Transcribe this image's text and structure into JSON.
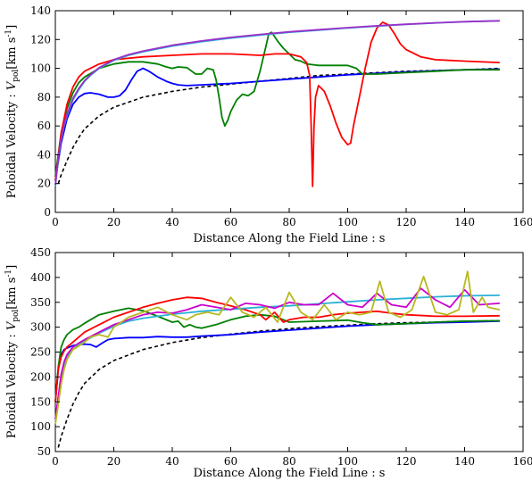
{
  "chart_data": [
    {
      "type": "line",
      "xlabel": "Distance Along the Field Line : s",
      "ylabel": "Poloidal Velocity : V_pol [km s^-1]",
      "xlim": [
        0,
        160
      ],
      "ylim": [
        0,
        140
      ],
      "xticks": [
        "0",
        "20",
        "40",
        "60",
        "80",
        "100",
        "120",
        "140",
        "160"
      ],
      "yticks": [
        "0",
        "20",
        "40",
        "60",
        "80",
        "100",
        "120",
        "140"
      ],
      "grid": false,
      "series": [
        {
          "color": "#000000",
          "dash": "4,3",
          "x": [
            1,
            2,
            4,
            6,
            8,
            10,
            15,
            20,
            30,
            40,
            50,
            60,
            70,
            80,
            90,
            100,
            110,
            120,
            130,
            140,
            152
          ],
          "y": [
            20,
            26,
            36,
            45,
            52,
            58,
            67,
            73,
            80,
            84,
            87,
            89,
            91,
            93,
            95,
            96,
            97,
            98,
            98.5,
            99,
            100
          ]
        },
        {
          "color": "#0000ff",
          "x": [
            0,
            2,
            4,
            6,
            8,
            10,
            12,
            15,
            18,
            20,
            22,
            24,
            26,
            28,
            30,
            32,
            35,
            38,
            40,
            42,
            45,
            50,
            60,
            70,
            80,
            90,
            100,
            110,
            120,
            130,
            140,
            152
          ],
          "y": [
            22,
            48,
            65,
            75,
            80,
            82.5,
            83,
            82,
            80,
            80,
            81,
            85,
            92,
            98,
            100,
            98,
            94,
            91,
            89.5,
            88.5,
            88,
            88.5,
            89.5,
            91,
            92.5,
            94,
            95.5,
            96.5,
            97.5,
            98.3,
            99,
            99.5
          ]
        },
        {
          "color": "#008000",
          "x": [
            0,
            2,
            4,
            6,
            8,
            10,
            15,
            20,
            25,
            30,
            35,
            38,
            40,
            42,
            45,
            48,
            50,
            52,
            54,
            55,
            56,
            57,
            58,
            59,
            60,
            62,
            64,
            66,
            68,
            70,
            72,
            73,
            74,
            76,
            78,
            80,
            82,
            84,
            86,
            88,
            90,
            95,
            100,
            103,
            105,
            110,
            120,
            130,
            140,
            152
          ],
          "y": [
            25,
            55,
            72,
            83,
            90,
            94,
            100,
            103,
            104.5,
            104.5,
            103,
            101,
            100,
            101,
            100.5,
            96,
            96,
            100,
            99,
            92,
            80,
            66,
            60,
            64,
            70,
            78,
            82,
            81,
            84,
            98,
            115,
            124,
            125,
            119,
            114,
            110,
            106,
            105,
            103,
            102.5,
            102,
            102,
            102,
            100,
            96,
            96,
            97,
            98,
            99,
            99
          ]
        },
        {
          "color": "#ff0000",
          "x": [
            0,
            2,
            4,
            6,
            8,
            10,
            15,
            20,
            30,
            40,
            50,
            60,
            70,
            75,
            80,
            84,
            86,
            87,
            87.5,
            88,
            88.5,
            89,
            90,
            92,
            94,
            96,
            98,
            100,
            101,
            102,
            104,
            106,
            108,
            110,
            112,
            114,
            116,
            118,
            120,
            125,
            130,
            140,
            152
          ],
          "y": [
            22,
            55,
            75,
            87,
            94,
            98,
            103,
            106,
            108,
            109,
            110,
            110,
            109,
            110,
            110,
            108,
            104,
            95,
            60,
            18,
            60,
            80,
            88,
            84,
            74,
            62,
            52,
            47,
            48,
            60,
            80,
            100,
            118,
            128,
            132,
            130,
            124,
            117,
            113,
            108,
            106,
            105,
            104
          ]
        },
        {
          "color": "#2ab0d8",
          "x": [
            0,
            1,
            2,
            3,
            4,
            6,
            8,
            10,
            12,
            15,
            20,
            25,
            30,
            40,
            50,
            60,
            70,
            80,
            90,
            100,
            110,
            120,
            130,
            140,
            152
          ],
          "y": [
            18,
            37,
            50,
            60,
            67,
            78,
            85,
            91,
            95,
            100,
            105.5,
            109,
            111.5,
            115.5,
            118.5,
            121,
            123,
            125,
            126.5,
            128,
            129.3,
            130.5,
            131.5,
            132.3,
            133
          ]
        },
        {
          "color": "#9b30c8",
          "x": [
            0,
            1,
            2,
            3,
            4,
            6,
            8,
            10,
            12,
            15,
            20,
            25,
            30,
            40,
            50,
            60,
            70,
            80,
            90,
            100,
            110,
            120,
            130,
            140,
            152
          ],
          "y": [
            19,
            38,
            51,
            61,
            68,
            79,
            86,
            91.5,
            95.5,
            100.5,
            106,
            109.5,
            112,
            116,
            119,
            121.5,
            123.5,
            125.3,
            126.8,
            128.2,
            129.5,
            130.6,
            131.6,
            132.4,
            133
          ]
        }
      ]
    },
    {
      "type": "line",
      "xlabel": "Distance Along the Field Line : s",
      "ylabel": "Poloidal Velocity : V_pol [km s^-1]",
      "xlim": [
        0,
        160
      ],
      "ylim": [
        50,
        450
      ],
      "xticks": [
        "0",
        "20",
        "40",
        "60",
        "80",
        "100",
        "120",
        "140",
        "160"
      ],
      "yticks": [
        "50",
        "100",
        "150",
        "200",
        "250",
        "300",
        "350",
        "400",
        "450"
      ],
      "grid": false,
      "series": [
        {
          "color": "#000000",
          "dash": "4,3",
          "x": [
            1,
            2,
            4,
            6,
            8,
            10,
            15,
            20,
            30,
            40,
            50,
            60,
            70,
            80,
            90,
            100,
            110,
            120,
            130,
            140,
            152
          ],
          "y": [
            58,
            80,
            115,
            145,
            168,
            187,
            215,
            233,
            255,
            269,
            279,
            286,
            292,
            297,
            301,
            304,
            307,
            309,
            310,
            312,
            313
          ]
        },
        {
          "color": "#0000ff",
          "x": [
            0,
            1,
            2,
            3,
            4,
            6,
            8,
            10,
            12,
            14,
            16,
            18,
            20,
            25,
            30,
            35,
            40,
            45,
            50,
            60,
            70,
            80,
            90,
            100,
            110,
            120,
            130,
            140,
            152
          ],
          "y": [
            150,
            215,
            245,
            255,
            258,
            263,
            265,
            266,
            265,
            260,
            268,
            275,
            277,
            279,
            279,
            281,
            280,
            280,
            282,
            285,
            290,
            294,
            298,
            302,
            305,
            307,
            309,
            310,
            312
          ]
        },
        {
          "color": "#008000",
          "x": [
            0,
            1,
            2,
            3,
            4,
            6,
            8,
            10,
            15,
            20,
            25,
            30,
            35,
            40,
            42,
            44,
            46,
            48,
            50,
            55,
            60,
            65,
            70,
            75,
            80,
            90,
            100,
            105,
            110,
            120,
            130,
            140,
            152
          ],
          "y": [
            150,
            220,
            260,
            275,
            285,
            295,
            300,
            308,
            325,
            332,
            338,
            333,
            322,
            310,
            312,
            300,
            305,
            300,
            298,
            305,
            315,
            322,
            325,
            322,
            310,
            312,
            314,
            309,
            305,
            307,
            310,
            312,
            313
          ]
        },
        {
          "color": "#ff0000",
          "x": [
            0,
            1,
            2,
            3,
            4,
            6,
            8,
            10,
            15,
            20,
            25,
            30,
            35,
            40,
            45,
            50,
            55,
            60,
            65,
            70,
            72,
            75,
            78,
            80,
            85,
            90,
            95,
            100,
            105,
            110,
            115,
            120,
            130,
            140,
            152
          ],
          "y": [
            150,
            215,
            240,
            252,
            260,
            270,
            280,
            290,
            305,
            320,
            330,
            340,
            348,
            355,
            360,
            358,
            350,
            343,
            335,
            325,
            315,
            330,
            310,
            315,
            320,
            320,
            325,
            328,
            330,
            332,
            328,
            325,
            322,
            322,
            323
          ]
        },
        {
          "color": "#2ab0d8",
          "x": [
            0,
            1,
            2,
            3,
            4,
            6,
            8,
            10,
            15,
            20,
            25,
            30,
            35,
            40,
            45,
            50,
            60,
            70,
            80,
            90,
            100,
            110,
            120,
            130,
            140,
            152
          ],
          "y": [
            110,
            150,
            200,
            225,
            240,
            255,
            265,
            272,
            288,
            302,
            312,
            318,
            322,
            326,
            329,
            332,
            336,
            340,
            343,
            347,
            351,
            355,
            358,
            361,
            363,
            364
          ]
        },
        {
          "color": "#cc00cc",
          "x": [
            0,
            1,
            2,
            3,
            4,
            6,
            8,
            10,
            15,
            20,
            25,
            30,
            35,
            40,
            45,
            50,
            55,
            60,
            65,
            70,
            75,
            80,
            85,
            90,
            95,
            100,
            105,
            110,
            115,
            120,
            125,
            130,
            135,
            140,
            145,
            152
          ],
          "y": [
            115,
            160,
            205,
            230,
            245,
            260,
            268,
            275,
            290,
            305,
            315,
            325,
            330,
            328,
            335,
            345,
            340,
            335,
            348,
            345,
            338,
            350,
            345,
            345,
            368,
            345,
            340,
            368,
            345,
            340,
            378,
            355,
            340,
            375,
            345,
            348
          ]
        },
        {
          "color": "#b8b820",
          "x": [
            0,
            1,
            2,
            3,
            4,
            6,
            8,
            10,
            12,
            15,
            18,
            20,
            25,
            30,
            35,
            40,
            45,
            48,
            52,
            56,
            60,
            64,
            68,
            72,
            76,
            80,
            84,
            88,
            92,
            96,
            100,
            104,
            108,
            111,
            114,
            118,
            122,
            126,
            130,
            134,
            138,
            141,
            143,
            146,
            148,
            152
          ],
          "y": [
            105,
            145,
            185,
            215,
            235,
            255,
            262,
            270,
            280,
            285,
            280,
            300,
            320,
            330,
            340,
            325,
            315,
            325,
            330,
            325,
            360,
            330,
            320,
            340,
            310,
            370,
            330,
            315,
            345,
            315,
            330,
            325,
            330,
            392,
            330,
            320,
            335,
            402,
            330,
            325,
            335,
            412,
            330,
            360,
            340,
            335
          ]
        }
      ]
    }
  ]
}
